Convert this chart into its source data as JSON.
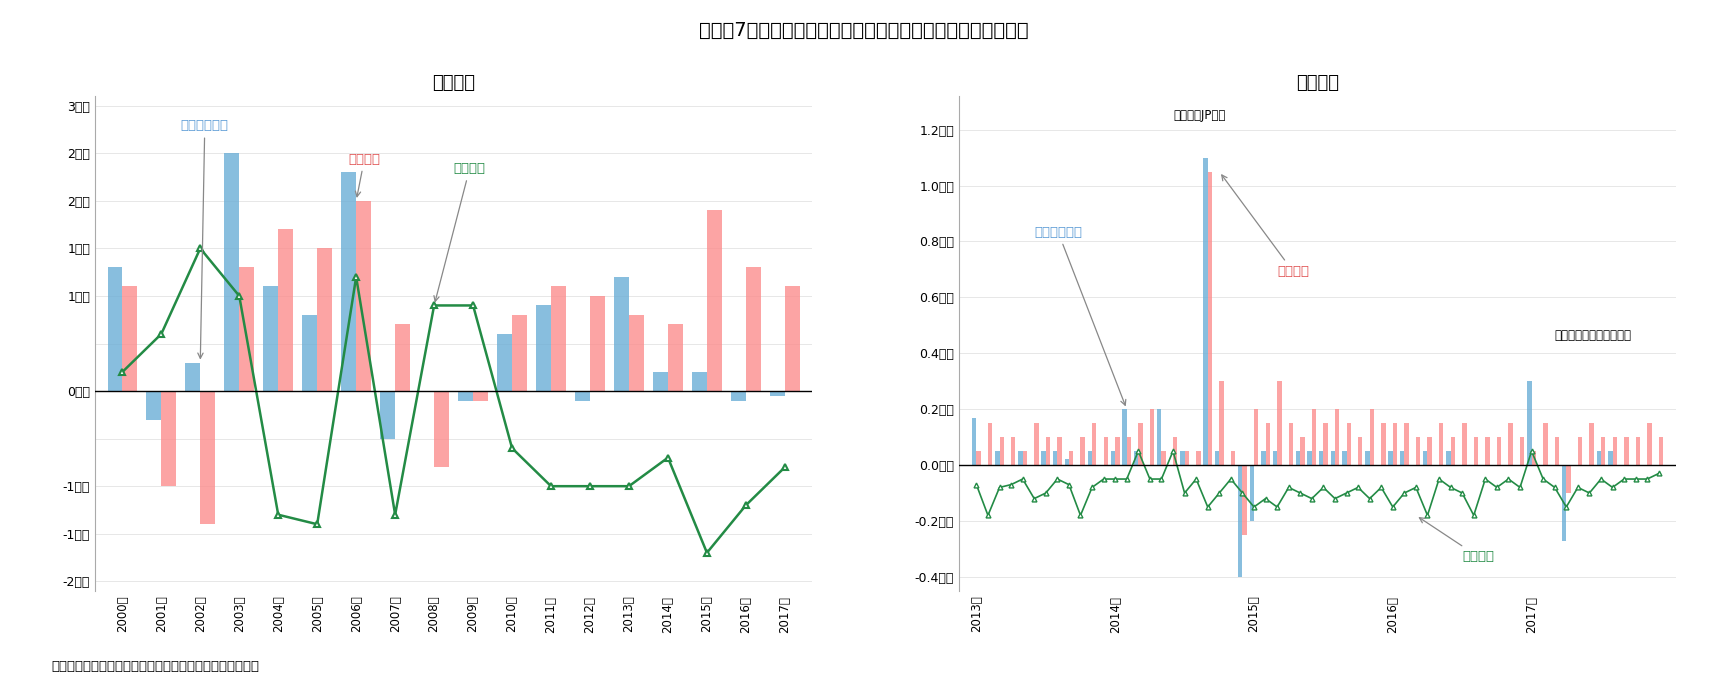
{
  "title": "図表－7　札幌ビジネス地区の賃貸オフィスの需給面積増加分",
  "subtitle_left": "＜年次＞",
  "subtitle_right": "＜月次＞",
  "source": "（出所）三鬼商事のデータを基にニッセイ基礎研究所作成",
  "annual_years": [
    "2000年",
    "2001年",
    "2002年",
    "2003年",
    "2004年",
    "2005年",
    "2006年",
    "2007年",
    "2008年",
    "2009年",
    "2010年",
    "2011年",
    "2012年",
    "2013年",
    "2014年",
    "2015年",
    "2016年",
    "2017年"
  ],
  "annual_rentable": [
    1.3,
    -0.3,
    0.3,
    2.5,
    1.1,
    0.8,
    2.3,
    -0.5,
    0.0,
    -0.1,
    0.6,
    0.9,
    -0.1,
    1.2,
    0.2,
    0.2,
    -0.1,
    -0.05
  ],
  "annual_rental": [
    1.1,
    -1.0,
    -1.4,
    1.3,
    1.7,
    1.5,
    2.0,
    0.7,
    -0.8,
    -0.1,
    0.8,
    1.1,
    1.0,
    0.8,
    0.7,
    1.9,
    1.3,
    1.1
  ],
  "annual_vacancy": [
    0.2,
    0.6,
    1.5,
    1.0,
    -1.3,
    -1.4,
    1.2,
    -1.3,
    0.9,
    0.9,
    -0.6,
    -1.0,
    -1.0,
    -1.0,
    -0.7,
    -1.7,
    -1.2,
    -0.8
  ],
  "annual_ylim": [
    -2.1,
    3.1
  ],
  "monthly_rentable": [
    0.17,
    0.0,
    0.05,
    0.0,
    0.05,
    0.0,
    0.05,
    0.05,
    0.02,
    0.0,
    0.05,
    0.0,
    0.05,
    0.2,
    0.05,
    0.0,
    0.2,
    0.0,
    0.05,
    0.0,
    1.1,
    0.05,
    0.0,
    -0.4,
    -0.2,
    0.05,
    0.05,
    0.0,
    0.05,
    0.05,
    0.05,
    0.05,
    0.05,
    0.0,
    0.05,
    0.0,
    0.05,
    0.05,
    0.0,
    0.05,
    0.0,
    0.05,
    0.0,
    0.0,
    0.0,
    0.0,
    0.0,
    0.0,
    0.3,
    0.0,
    0.0,
    -0.27,
    0.0,
    0.0,
    0.05,
    0.05,
    0.0,
    0.0,
    0.0,
    0.0
  ],
  "monthly_rental": [
    0.05,
    0.15,
    0.1,
    0.1,
    0.05,
    0.15,
    0.1,
    0.1,
    0.05,
    0.1,
    0.15,
    0.1,
    0.1,
    0.1,
    0.15,
    0.2,
    0.05,
    0.1,
    0.05,
    0.05,
    1.05,
    0.3,
    0.05,
    -0.25,
    0.2,
    0.15,
    0.3,
    0.15,
    0.1,
    0.2,
    0.15,
    0.2,
    0.15,
    0.1,
    0.2,
    0.15,
    0.15,
    0.15,
    0.1,
    0.1,
    0.15,
    0.1,
    0.15,
    0.1,
    0.1,
    0.1,
    0.15,
    0.1,
    0.05,
    0.15,
    0.1,
    -0.1,
    0.1,
    0.15,
    0.1,
    0.1,
    0.1,
    0.1,
    0.15,
    0.1
  ],
  "monthly_vacancy": [
    -0.07,
    -0.18,
    -0.08,
    -0.07,
    -0.05,
    -0.12,
    -0.1,
    -0.05,
    -0.07,
    -0.18,
    -0.08,
    -0.05,
    -0.05,
    -0.05,
    0.05,
    -0.05,
    -0.05,
    0.05,
    -0.1,
    -0.05,
    -0.15,
    -0.1,
    -0.05,
    -0.1,
    -0.15,
    -0.12,
    -0.15,
    -0.08,
    -0.1,
    -0.12,
    -0.08,
    -0.12,
    -0.1,
    -0.08,
    -0.12,
    -0.08,
    -0.15,
    -0.1,
    -0.08,
    -0.18,
    -0.05,
    -0.08,
    -0.1,
    -0.18,
    -0.05,
    -0.08,
    -0.05,
    -0.08,
    0.05,
    -0.05,
    -0.08,
    -0.15,
    -0.08,
    -0.1,
    -0.05,
    -0.08,
    -0.05,
    -0.05,
    -0.05,
    -0.03
  ],
  "monthly_ylim": [
    -0.45,
    1.32
  ],
  "color_rentable": "#6BAED6",
  "color_rental": "#FC8D8D",
  "color_vacancy": "#238B45",
  "ann_color_rentable": "#5B9BD5",
  "ann_color_rental": "#E05050",
  "ann_color_vacancy": "#238B45"
}
